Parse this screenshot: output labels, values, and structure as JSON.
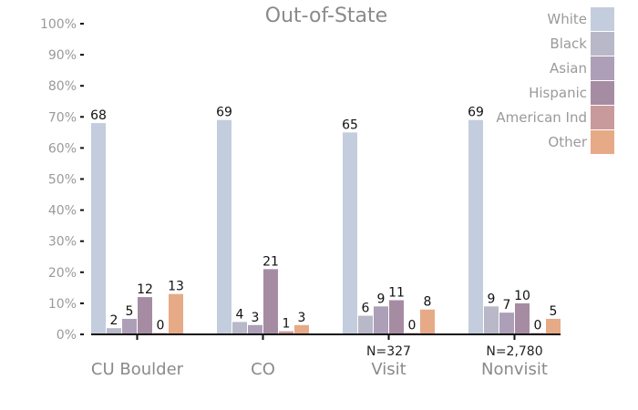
{
  "chart_data": {
    "type": "bar",
    "title": "Out-of-State",
    "categories": [
      "CU Boulder",
      "CO",
      "Visit",
      "Nonvisit"
    ],
    "category_notes": [
      "",
      "",
      "N=327",
      "N=2,780"
    ],
    "series": [
      {
        "name": "White",
        "color": "#c3cddd",
        "values": [
          68,
          69,
          65,
          69
        ]
      },
      {
        "name": "Black",
        "color": "#b9b8c9",
        "values": [
          2,
          4,
          6,
          9
        ]
      },
      {
        "name": "Asian",
        "color": "#ad9fb8",
        "values": [
          5,
          3,
          9,
          7
        ]
      },
      {
        "name": "Hispanic",
        "color": "#a68ca3",
        "values": [
          12,
          21,
          11,
          10
        ]
      },
      {
        "name": "American Ind",
        "color": "#c99a9c",
        "values": [
          0,
          1,
          0,
          0
        ]
      },
      {
        "name": "Other",
        "color": "#e7aa87",
        "values": [
          13,
          3,
          8,
          5
        ]
      }
    ],
    "xlabel": "",
    "ylabel": "",
    "ylim": [
      0,
      100
    ],
    "yticks": [
      0,
      10,
      20,
      30,
      40,
      50,
      60,
      70,
      80,
      90,
      100
    ],
    "ytick_labels": [
      "0%",
      "10%",
      "20%",
      "30%",
      "40%",
      "50%",
      "60%",
      "70%",
      "80%",
      "90%",
      "100%"
    ],
    "grid": false,
    "legend": "top-right"
  }
}
